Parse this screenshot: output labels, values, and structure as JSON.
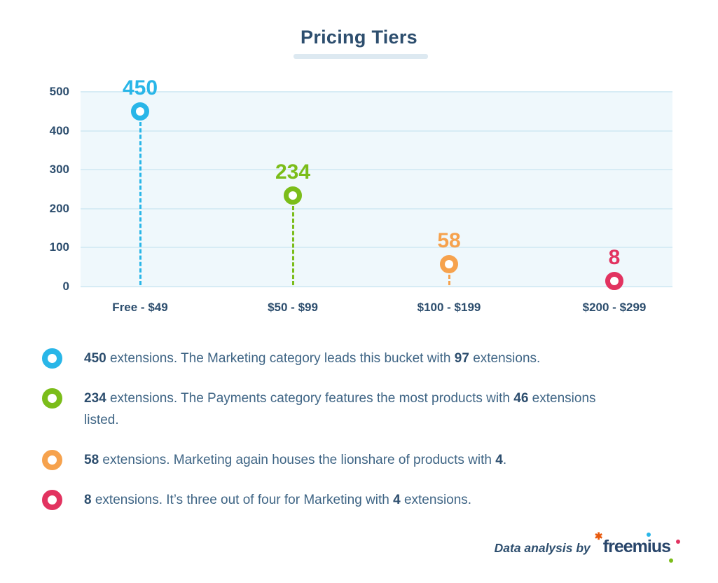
{
  "title": "Pricing Tiers",
  "chart_data": {
    "type": "scatter",
    "variant": "lollipop",
    "title": "Pricing Tiers",
    "categories": [
      "Free - $49",
      "$50 - $99",
      "$100 - $199",
      "$200 - $299"
    ],
    "values": [
      450,
      234,
      58,
      8
    ],
    "point_colors": [
      "#29b6e8",
      "#7bbd1a",
      "#f6a24d",
      "#e23360"
    ],
    "xlabel": "",
    "ylabel": "",
    "ylim": [
      0,
      500
    ],
    "yticks": [
      0,
      100,
      200,
      300,
      400,
      500
    ],
    "grid": true,
    "marker_style": "open-ring",
    "stem_style": "dashed",
    "legend_position": "below"
  },
  "legend": {
    "items": [
      {
        "marker_color": "#29b6e8",
        "segments": [
          {
            "text": "450",
            "bold": true
          },
          {
            "text": " extensions. The Marketing category leads this bucket with ",
            "bold": false
          },
          {
            "text": "97",
            "bold": true
          },
          {
            "text": " extensions.",
            "bold": false
          }
        ]
      },
      {
        "marker_color": "#7bbd1a",
        "segments": [
          {
            "text": "234",
            "bold": true
          },
          {
            "text": " extensions. The Payments category features the most products with ",
            "bold": false
          },
          {
            "text": "46",
            "bold": true
          },
          {
            "text": " extensions listed.",
            "bold": false
          }
        ]
      },
      {
        "marker_color": "#f6a24d",
        "segments": [
          {
            "text": "58",
            "bold": true
          },
          {
            "text": " extensions. Marketing again houses the lionshare of products with ",
            "bold": false
          },
          {
            "text": "4",
            "bold": true
          },
          {
            "text": ".",
            "bold": false
          }
        ]
      },
      {
        "marker_color": "#e23360",
        "segments": [
          {
            "text": "8",
            "bold": true
          },
          {
            "text": " extensions. It’s three out of four for Marketing with ",
            "bold": false
          },
          {
            "text": "4",
            "bold": true
          },
          {
            "text": " extensions.",
            "bold": false
          }
        ]
      }
    ]
  },
  "footer": {
    "credit_text": "Data analysis by",
    "brand_name": "freemius",
    "logo_spark": "✱"
  },
  "colors": {
    "title_text": "#2d4e6e",
    "axis_text": "#2d4e6e",
    "body_text": "#3f6585",
    "plot_background": "#eff8fc",
    "gridline": "#d7ecf5",
    "background": "#ffffff"
  }
}
